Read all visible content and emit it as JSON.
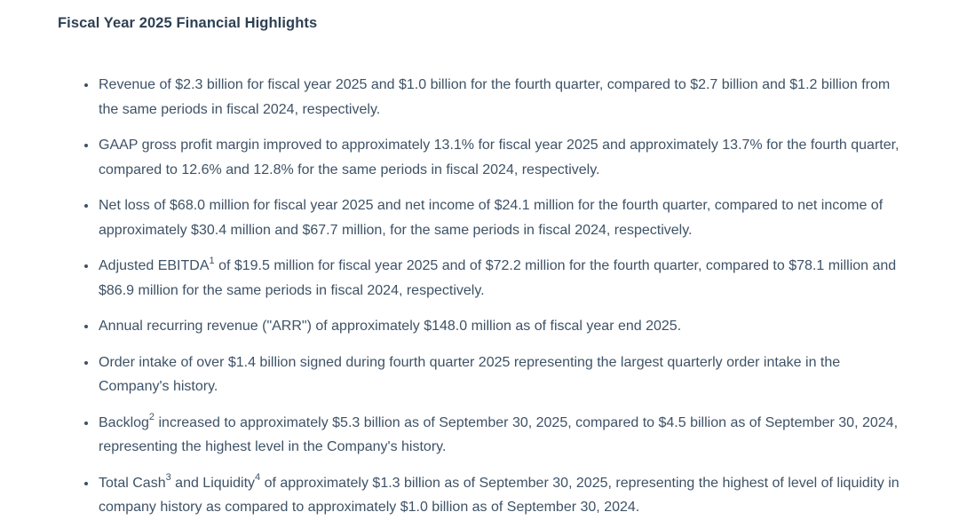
{
  "page": {
    "title": "Fiscal Year 2025 Financial Highlights",
    "colors": {
      "background": "#ffffff",
      "title_text": "#2e4154",
      "body_text": "#3e5266"
    },
    "bullets": [
      {
        "segments": [
          {
            "text": "Revenue of $2.3 billion for fiscal year 2025 and $1.0 billion for the fourth quarter, compared to $2.7 billion and $1.2 billion from the same periods in fiscal 2024, respectively.",
            "sup": false
          }
        ]
      },
      {
        "segments": [
          {
            "text": "GAAP gross profit margin improved to approximately 13.1% for fiscal year 2025 and approximately 13.7% for the fourth quarter, compared to 12.6% and 12.8% for the same periods in fiscal 2024, respectively.",
            "sup": false
          }
        ]
      },
      {
        "segments": [
          {
            "text": "Net loss of $68.0 million for fiscal year 2025 and net income of $24.1 million for the fourth quarter, compared to net income of approximately $30.4 million and $67.7 million, for the same periods in fiscal 2024, respectively.",
            "sup": false
          }
        ]
      },
      {
        "segments": [
          {
            "text": "Adjusted EBITDA",
            "sup": false
          },
          {
            "text": "1",
            "sup": true
          },
          {
            "text": " of $19.5 million for fiscal year 2025 and of $72.2 million for the fourth quarter, compared to $78.1 million and $86.9 million for the same periods in fiscal 2024, respectively.",
            "sup": false
          }
        ]
      },
      {
        "segments": [
          {
            "text": "Annual recurring revenue (\"ARR\") of approximately $148.0 million as of fiscal year end 2025.",
            "sup": false
          }
        ]
      },
      {
        "segments": [
          {
            "text": "Order intake of over $1.4 billion signed during fourth quarter 2025 representing the largest quarterly order intake in the Company's history.",
            "sup": false
          }
        ]
      },
      {
        "segments": [
          {
            "text": "Backlog",
            "sup": false
          },
          {
            "text": "2",
            "sup": true
          },
          {
            "text": " increased to approximately $5.3 billion as of September 30, 2025, compared to $4.5 billion as of September 30, 2024, representing the highest level in the Company's history.",
            "sup": false
          }
        ]
      },
      {
        "segments": [
          {
            "text": "Total Cash",
            "sup": false
          },
          {
            "text": "3",
            "sup": true
          },
          {
            "text": " and Liquidity",
            "sup": false
          },
          {
            "text": "4",
            "sup": true
          },
          {
            "text": " of approximately $1.3 billion as of September 30, 2025, representing the highest of level of liquidity in company history as compared to approximately $1.0 billion as of September 30, 2024.",
            "sup": false
          }
        ]
      }
    ]
  }
}
